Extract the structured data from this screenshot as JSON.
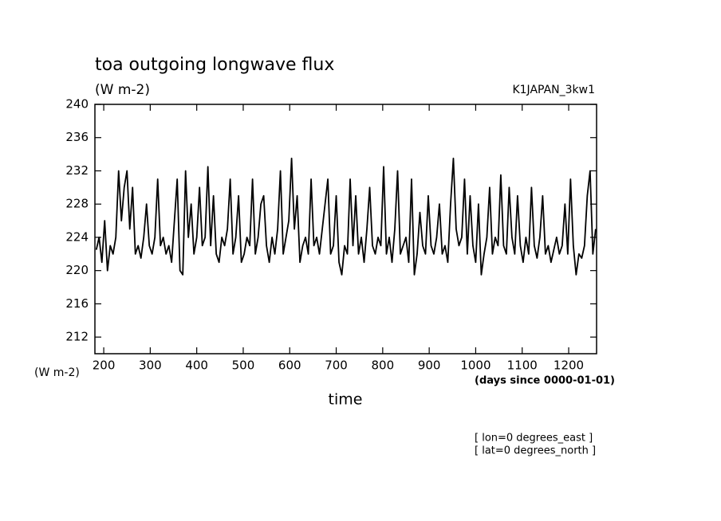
{
  "chart_data": {
    "type": "line",
    "title": "toa outgoing longwave flux",
    "units": "(W m-2)",
    "dataset": "K1JAPAN_3kw1",
    "xlabel": "time",
    "x_units": "(days since 0000-01-01)",
    "notes": [
      "[ lon=0 degrees_east ]",
      "[ lat=0 degrees_north ]"
    ],
    "xlim": [
      181,
      1260
    ],
    "ylim": [
      210,
      240
    ],
    "xticks": [
      200,
      300,
      400,
      500,
      600,
      700,
      800,
      900,
      1000,
      1100,
      1200
    ],
    "yticks": [
      212,
      216,
      220,
      224,
      228,
      232,
      236,
      240
    ],
    "x": [
      184,
      190,
      196,
      202,
      208,
      214,
      220,
      226,
      232,
      238,
      244,
      250,
      256,
      262,
      268,
      274,
      280,
      286,
      292,
      298,
      304,
      310,
      316,
      322,
      328,
      334,
      340,
      346,
      352,
      358,
      364,
      370,
      376,
      382,
      388,
      394,
      400,
      406,
      412,
      418,
      424,
      430,
      436,
      442,
      448,
      454,
      460,
      466,
      472,
      478,
      484,
      490,
      496,
      502,
      508,
      514,
      520,
      526,
      532,
      538,
      544,
      550,
      556,
      562,
      568,
      574,
      580,
      586,
      592,
      598,
      604,
      610,
      616,
      622,
      628,
      634,
      640,
      646,
      652,
      658,
      664,
      670,
      676,
      682,
      688,
      694,
      700,
      706,
      712,
      718,
      724,
      730,
      736,
      742,
      748,
      754,
      760,
      766,
      772,
      778,
      784,
      790,
      796,
      802,
      808,
      814,
      820,
      826,
      832,
      838,
      844,
      850,
      856,
      862,
      868,
      874,
      880,
      886,
      892,
      898,
      904,
      910,
      916,
      922,
      928,
      934,
      940,
      946,
      952,
      958,
      964,
      970,
      976,
      982,
      988,
      994,
      1000,
      1006,
      1012,
      1018,
      1024,
      1030,
      1036,
      1042,
      1048,
      1054,
      1060,
      1066,
      1072,
      1078,
      1084,
      1090,
      1096,
      1102,
      1108,
      1114,
      1120,
      1126,
      1132,
      1138,
      1144,
      1150,
      1156,
      1162,
      1168,
      1174,
      1180,
      1186,
      1192,
      1198,
      1204,
      1210,
      1216,
      1222,
      1228,
      1234,
      1240,
      1246,
      1252,
      1258
    ],
    "series": [
      {
        "color": "#000000",
        "values": [
          222.5,
          224,
          221,
          226,
          220,
          223,
          222,
          224,
          232,
          226,
          230,
          232,
          225,
          230,
          222,
          223,
          221.5,
          224,
          228,
          223,
          222,
          224,
          231,
          223,
          224,
          222,
          223,
          221,
          226,
          231,
          220,
          219.5,
          232,
          224,
          228,
          222,
          224,
          230,
          223,
          224,
          232.5,
          223,
          229,
          222,
          221,
          224,
          223,
          225,
          231,
          222,
          224,
          229,
          221,
          222,
          224,
          223,
          231,
          222,
          224,
          228,
          229,
          223,
          221,
          224,
          222,
          225,
          232,
          222,
          224,
          226,
          233.5,
          225,
          229,
          221,
          223,
          224,
          222,
          231,
          223,
          224,
          222,
          225,
          228,
          231,
          222,
          223,
          229,
          221,
          219.5,
          223,
          222,
          231,
          223,
          229,
          222,
          224,
          221,
          225,
          230,
          223,
          222,
          224,
          223,
          232.5,
          222,
          224,
          221,
          225,
          232,
          222,
          223,
          224,
          221,
          231,
          219.5,
          222,
          227,
          223,
          222,
          229,
          223,
          222,
          224,
          228,
          222,
          223,
          221,
          228,
          233.5,
          225,
          223,
          224,
          231,
          222,
          229,
          223,
          221,
          228,
          219.5,
          222,
          224,
          230,
          222,
          224,
          223,
          231.5,
          223,
          222,
          230,
          224,
          222,
          229,
          223,
          221,
          224,
          222,
          230,
          223,
          221.5,
          224,
          229,
          222,
          223,
          221,
          222.5,
          224,
          222,
          223,
          228,
          222,
          231,
          223,
          219.5,
          222,
          221.5,
          223,
          229,
          232,
          222,
          225
        ]
      }
    ]
  }
}
